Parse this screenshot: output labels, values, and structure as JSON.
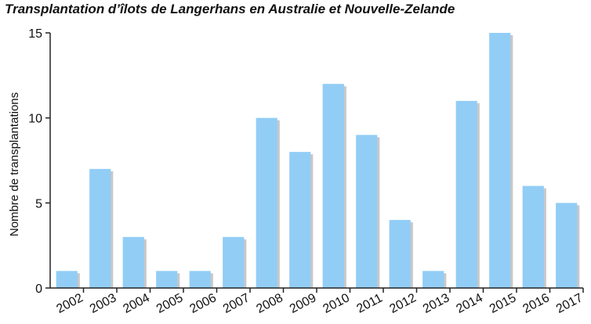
{
  "chart_data": {
    "type": "bar",
    "title": "Transplantation d’îlots de Langerhans en Australie et Nouvelle-Zelande",
    "xlabel": "",
    "ylabel": "Nombre de transplantations",
    "categories": [
      "2002",
      "2003",
      "2004",
      "2005",
      "2006",
      "2007",
      "2008",
      "2009",
      "2010",
      "2011",
      "2012",
      "2013",
      "2014",
      "2015",
      "2016",
      "2017"
    ],
    "values": [
      1,
      7,
      3,
      1,
      1,
      3,
      10,
      8,
      12,
      9,
      4,
      1,
      11,
      15,
      6,
      5
    ],
    "ylim": [
      0,
      15
    ],
    "yticks": [
      0,
      5,
      10,
      15
    ],
    "grid": false,
    "bar_color": "#92cdf6",
    "shadow_color": "#c8c8c8"
  }
}
